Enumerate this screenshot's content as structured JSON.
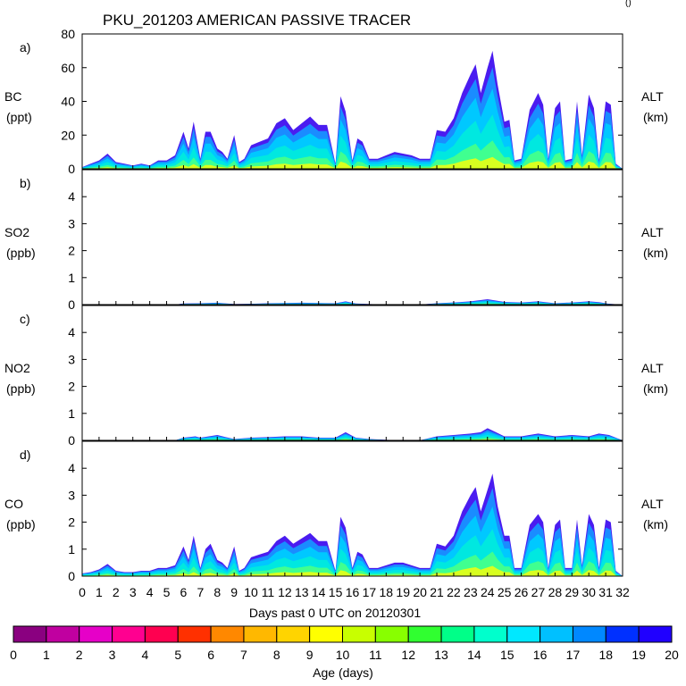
{
  "chart_data": {
    "type": "area",
    "title": "PKU_201203 AMERICAN PASSIVE TRACER",
    "corner_mark": "()",
    "xlabel": "Days past 0 UTC on 20120301",
    "x_ticks": [
      "0",
      "1",
      "2",
      "3",
      "4",
      "5",
      "6",
      "7",
      "8",
      "9",
      "10",
      "11",
      "12",
      "13",
      "14",
      "15",
      "16",
      "17",
      "18",
      "19",
      "20",
      "21",
      "22",
      "23",
      "24",
      "25",
      "26",
      "27",
      "28",
      "29",
      "30",
      "31",
      "32"
    ],
    "xlim": [
      0,
      32
    ],
    "right_label": [
      "ALT",
      "(km)"
    ],
    "panels": [
      {
        "id": "a",
        "letter": "a)",
        "ylabel": [
          "BC",
          "(ppt)"
        ],
        "ylim": [
          0,
          80
        ],
        "y_ticks": [
          "0",
          "20",
          "40",
          "60",
          "80"
        ],
        "y_tick_values": [
          0,
          20,
          40,
          60,
          80
        ],
        "x": [
          0,
          0.5,
          1,
          1.5,
          2,
          2.5,
          3,
          3.5,
          4,
          4.5,
          5,
          5.5,
          6,
          6.3,
          6.6,
          7,
          7.3,
          7.6,
          8,
          8.3,
          8.6,
          9,
          9.3,
          9.6,
          10,
          10.5,
          11,
          11.5,
          12,
          12.5,
          13,
          13.5,
          14,
          14.5,
          15,
          15.3,
          15.6,
          16,
          16.3,
          16.6,
          17,
          17.5,
          18,
          18.5,
          19,
          19.5,
          20,
          20.3,
          20.6,
          21,
          21.5,
          22,
          22.5,
          23,
          23.3,
          23.6,
          24,
          24.3,
          24.6,
          25,
          25.3,
          25.6,
          26,
          26.5,
          27,
          27.3,
          27.6,
          28,
          28.3,
          28.6,
          29,
          29.3,
          29.6,
          30,
          30.3,
          30.6,
          31,
          31.3,
          31.6,
          32
        ],
        "values": [
          1,
          3,
          5,
          9,
          4,
          3,
          2,
          3,
          2,
          5,
          5,
          8,
          22,
          12,
          28,
          6,
          22,
          22,
          12,
          10,
          6,
          20,
          4,
          6,
          14,
          16,
          18,
          27,
          30,
          23,
          27,
          31,
          26,
          26,
          3,
          43,
          34,
          5,
          18,
          16,
          6,
          6,
          8,
          10,
          9,
          8,
          6,
          6,
          6,
          23,
          22,
          30,
          45,
          56,
          62,
          45,
          60,
          70,
          50,
          28,
          29,
          5,
          6,
          35,
          45,
          38,
          6,
          36,
          40,
          5,
          6,
          40,
          8,
          44,
          36,
          5,
          40,
          38,
          3,
          0
        ]
      },
      {
        "id": "b",
        "letter": "b)",
        "ylabel": [
          "SO2",
          "(ppb)"
        ],
        "ylim": [
          0,
          5
        ],
        "y_ticks": [
          "0",
          "1",
          "2",
          "3",
          "4"
        ],
        "y_tick_values": [
          0,
          1,
          2,
          3,
          4
        ],
        "x": [
          0,
          4,
          5.5,
          6,
          7,
          8,
          9,
          10,
          11,
          12,
          13,
          14,
          15,
          15.6,
          16.2,
          17,
          18,
          20,
          21,
          22,
          23,
          24,
          24.5,
          25,
          26,
          27,
          28,
          29,
          30,
          30.6,
          31.2,
          32
        ],
        "values": [
          0,
          0,
          0,
          0.04,
          0.05,
          0.07,
          0.02,
          0.03,
          0.05,
          0.06,
          0.07,
          0.06,
          0.05,
          0.12,
          0.04,
          0.02,
          0,
          0,
          0.05,
          0.08,
          0.12,
          0.2,
          0.15,
          0.1,
          0.08,
          0.12,
          0.05,
          0.08,
          0.12,
          0.09,
          0.03,
          0
        ]
      },
      {
        "id": "c",
        "letter": "c)",
        "ylabel": [
          "NO2",
          "(ppb)"
        ],
        "ylim": [
          0,
          5
        ],
        "y_ticks": [
          "0",
          "1",
          "2",
          "3",
          "4"
        ],
        "y_tick_values": [
          0,
          1,
          2,
          3,
          4
        ],
        "x": [
          0,
          5.5,
          6,
          6.7,
          7,
          8,
          8.5,
          9,
          10,
          11,
          12,
          13,
          14,
          15,
          15.6,
          16.2,
          17,
          18,
          19,
          20,
          21,
          22,
          23,
          23.6,
          24,
          24.5,
          25,
          26,
          27,
          28,
          29,
          30,
          30.6,
          31.2,
          32
        ],
        "values": [
          0,
          0,
          0.1,
          0.15,
          0.1,
          0.2,
          0.12,
          0.05,
          0.1,
          0.12,
          0.15,
          0.15,
          0.1,
          0.1,
          0.3,
          0.1,
          0.05,
          0.02,
          0,
          0,
          0.15,
          0.2,
          0.25,
          0.3,
          0.45,
          0.3,
          0.15,
          0.15,
          0.25,
          0.15,
          0.2,
          0.15,
          0.25,
          0.2,
          0
        ]
      },
      {
        "id": "d",
        "letter": "d)",
        "ylabel": [
          "CO",
          "(ppb)"
        ],
        "ylim": [
          0,
          5
        ],
        "y_ticks": [
          "0",
          "1",
          "2",
          "3",
          "4"
        ],
        "y_tick_values": [
          0,
          1,
          2,
          3,
          4
        ],
        "x": [
          0,
          0.5,
          1,
          1.5,
          2,
          2.5,
          3,
          3.5,
          4,
          4.5,
          5,
          5.5,
          6,
          6.3,
          6.6,
          7,
          7.3,
          7.6,
          8,
          8.3,
          8.6,
          9,
          9.3,
          9.6,
          10,
          10.5,
          11,
          11.5,
          12,
          12.5,
          13,
          13.5,
          14,
          14.5,
          15,
          15.3,
          15.6,
          16,
          16.3,
          16.6,
          17,
          17.5,
          18,
          18.5,
          19,
          19.5,
          20,
          20.3,
          20.6,
          21,
          21.5,
          22,
          22.5,
          23,
          23.3,
          23.6,
          24,
          24.3,
          24.6,
          25,
          25.3,
          25.6,
          26,
          26.5,
          27,
          27.3,
          27.6,
          28,
          28.3,
          28.6,
          29,
          29.3,
          29.6,
          30,
          30.3,
          30.6,
          31,
          31.3,
          31.6,
          32
        ],
        "values": [
          0.1,
          0.15,
          0.25,
          0.45,
          0.2,
          0.15,
          0.15,
          0.2,
          0.2,
          0.3,
          0.3,
          0.4,
          1.1,
          0.6,
          1.5,
          0.3,
          1.0,
          1.2,
          0.6,
          0.5,
          0.3,
          1.1,
          0.2,
          0.3,
          0.7,
          0.8,
          0.9,
          1.3,
          1.5,
          1.2,
          1.4,
          1.6,
          1.3,
          1.3,
          0.2,
          2.2,
          1.8,
          0.3,
          0.9,
          0.8,
          0.3,
          0.3,
          0.4,
          0.5,
          0.5,
          0.4,
          0.3,
          0.3,
          0.3,
          1.2,
          1.1,
          1.5,
          2.4,
          3.0,
          3.3,
          2.4,
          3.2,
          3.8,
          2.6,
          1.5,
          1.5,
          0.3,
          0.3,
          1.9,
          2.3,
          2.0,
          0.3,
          1.9,
          2.1,
          0.3,
          0.3,
          2.1,
          0.4,
          2.3,
          1.9,
          0.3,
          2.1,
          2.0,
          0.2,
          0
        ]
      }
    ],
    "colorbar": {
      "label": "Age (days)",
      "ticks": [
        "0",
        "1",
        "2",
        "3",
        "4",
        "5",
        "6",
        "7",
        "8",
        "9",
        "10",
        "11",
        "12",
        "13",
        "14",
        "15",
        "16",
        "17",
        "18",
        "19",
        "20"
      ],
      "colors": [
        "#8a0080",
        "#c000a0",
        "#e600c8",
        "#ff0090",
        "#ff0050",
        "#ff3000",
        "#ff8800",
        "#ffb800",
        "#ffd400",
        "#ffff00",
        "#c8ff00",
        "#88ff00",
        "#30ff30",
        "#00ff88",
        "#00ffcc",
        "#00e8ff",
        "#00c0ff",
        "#0088ff",
        "#0030ff",
        "#2000ff"
      ]
    },
    "fill_layers": [
      {
        "frac": 1.0,
        "color": "#4a1cf0"
      },
      {
        "frac": 0.86,
        "color": "#1a8cff"
      },
      {
        "frac": 0.68,
        "color": "#00c8ff"
      },
      {
        "frac": 0.46,
        "color": "#00e8e0"
      },
      {
        "frac": 0.24,
        "color": "#40ff90"
      },
      {
        "frac": 0.1,
        "color": "#d8ff20"
      }
    ]
  }
}
